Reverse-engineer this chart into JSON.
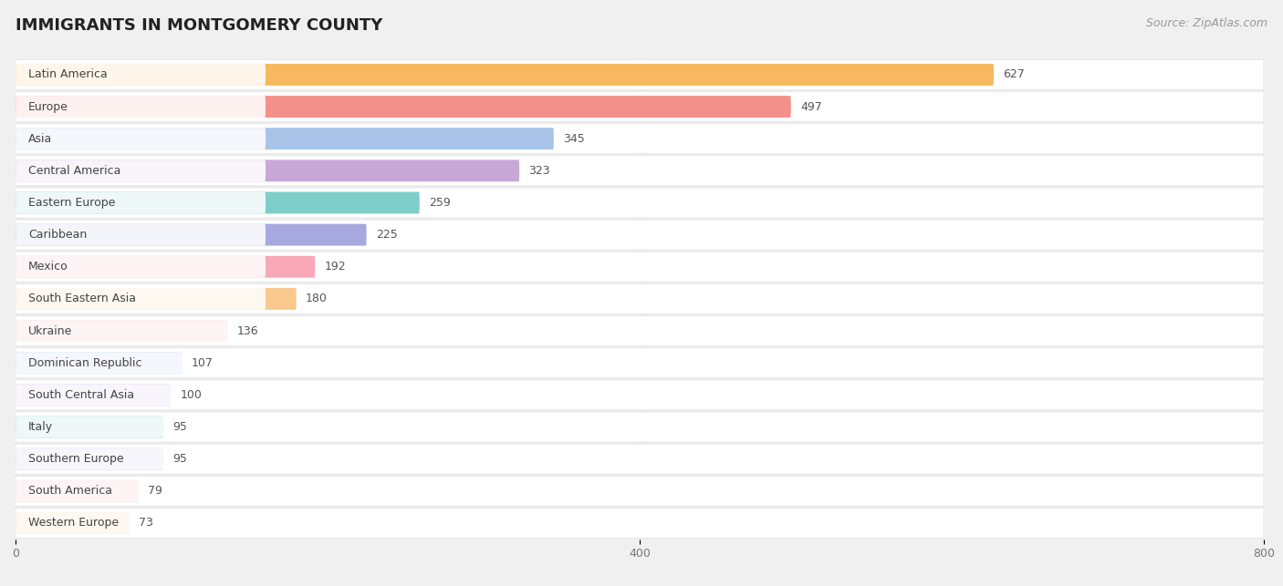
{
  "title": "IMMIGRANTS IN MONTGOMERY COUNTY",
  "source": "Source: ZipAtlas.com",
  "categories": [
    "Western Europe",
    "South America",
    "Southern Europe",
    "Italy",
    "South Central Asia",
    "Dominican Republic",
    "Ukraine",
    "South Eastern Asia",
    "Mexico",
    "Caribbean",
    "Eastern Europe",
    "Central America",
    "Asia",
    "Europe",
    "Latin America"
  ],
  "values": [
    73,
    79,
    95,
    95,
    100,
    107,
    136,
    180,
    192,
    225,
    259,
    323,
    345,
    497,
    627
  ],
  "bar_colors": [
    "#f8c98c",
    "#f9a8b8",
    "#b8b8e8",
    "#7ececa",
    "#c8b8e8",
    "#a8c4e8",
    "#f5a8a8",
    "#f8c88c",
    "#f9a8b8",
    "#a8a8e0",
    "#7ececa",
    "#c8a8d8",
    "#a8c4e8",
    "#f4908a",
    "#f8b860"
  ],
  "xlim": [
    0,
    800
  ],
  "xticks": [
    0,
    400,
    800
  ],
  "background_color": "#f0f0f0",
  "bar_background": "#ffffff",
  "row_bg_color": "#ffffff",
  "title_fontsize": 13,
  "source_fontsize": 9,
  "label_fontsize": 9,
  "value_fontsize": 9
}
